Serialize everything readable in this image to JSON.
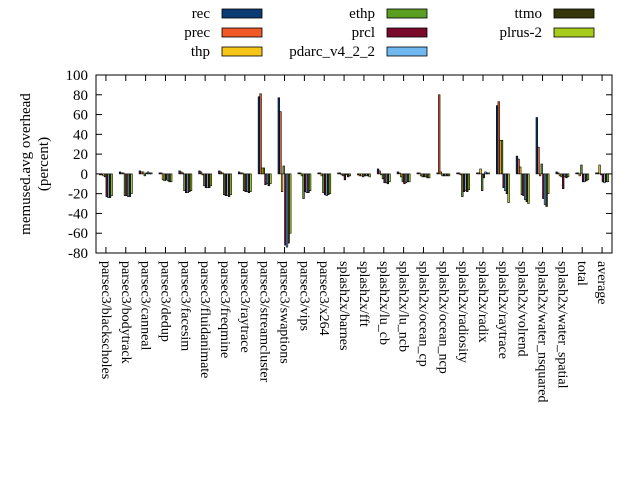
{
  "chart_data": {
    "type": "bar",
    "ylabel_line1": "memused.avg overhead",
    "ylabel_line2": "(percent)",
    "ylim": [
      -80,
      100
    ],
    "yticks": [
      -80,
      -60,
      -40,
      -20,
      0,
      20,
      40,
      60,
      80,
      100
    ],
    "grid": false,
    "legend_position": "top",
    "categories": [
      "parsec3/blackscholes",
      "parsec3/bodytrack",
      "parsec3/canneal",
      "parsec3/dedup",
      "parsec3/facesim",
      "parsec3/fluidanimate",
      "parsec3/freqmine",
      "parsec3/raytrace",
      "parsec3/streamcluster",
      "parsec3/swaptions",
      "parsec3/vips",
      "parsec3/x264",
      "splash2x/barnes",
      "splash2x/fft",
      "splash2x/lu_cb",
      "splash2x/lu_ncb",
      "splash2x/ocean_cp",
      "splash2x/ocean_ncp",
      "splash2x/radiosity",
      "splash2x/radix",
      "splash2x/raytrace",
      "splash2x/volrend",
      "splash2x/water_nsquared",
      "splash2x/water_spatial",
      "total",
      "average"
    ],
    "series": [
      {
        "name": "rec",
        "color": "#0b3b73",
        "values": [
          -1,
          2,
          3,
          1,
          3,
          3,
          3,
          2,
          78,
          77,
          1,
          1,
          1,
          -1,
          5,
          2,
          1,
          1,
          1,
          1,
          69,
          18,
          57,
          2,
          1,
          1
        ]
      },
      {
        "name": "prec",
        "color": "#f05a28",
        "values": [
          -1,
          1,
          2,
          1,
          2,
          2,
          2,
          1,
          81,
          63,
          1,
          1,
          1,
          -2,
          3,
          1,
          1,
          80,
          1,
          1,
          73,
          15,
          27,
          1,
          1,
          1
        ]
      },
      {
        "name": "thp",
        "color": "#f5c518",
        "values": [
          -2,
          1,
          2,
          -6,
          1,
          -1,
          1,
          1,
          6,
          -18,
          -2,
          -2,
          -1,
          -2,
          -1,
          -3,
          -2,
          2,
          -1,
          5,
          34,
          7,
          -2,
          -2,
          -2,
          9
        ]
      },
      {
        "name": "ethp",
        "color": "#5a9e22",
        "values": [
          -3,
          -22,
          -2,
          -7,
          -17,
          -12,
          -21,
          -17,
          6,
          8,
          -25,
          -19,
          -2,
          -3,
          -5,
          -8,
          -3,
          -2,
          -23,
          -17,
          34,
          -21,
          10,
          -3,
          9,
          -1
        ]
      },
      {
        "name": "prcl",
        "color": "#7a0a2c",
        "values": [
          -23,
          -22,
          1,
          -6,
          -19,
          -14,
          -22,
          -18,
          -11,
          -72,
          -18,
          -21,
          -6,
          -2,
          -9,
          -10,
          -3,
          -2,
          -18,
          -4,
          -14,
          -22,
          -25,
          -15,
          -8,
          -8
        ]
      },
      {
        "name": "pdarc_v4_2_2",
        "color": "#6fb8f0",
        "values": [
          -24,
          -23,
          2,
          -7,
          -19,
          -14,
          -22,
          -18,
          -10,
          -74,
          -19,
          -22,
          -1,
          -2,
          -9,
          -9,
          -3,
          -2,
          -17,
          2,
          -17,
          -26,
          -31,
          -3,
          -8,
          -9
        ]
      },
      {
        "name": "ttmo",
        "color": "#35350a",
        "values": [
          -24,
          -23,
          1,
          -8,
          -18,
          -14,
          -23,
          -19,
          -12,
          -70,
          -19,
          -21,
          -3,
          -2,
          -10,
          -8,
          -4,
          -2,
          -18,
          1,
          -20,
          -28,
          -33,
          -4,
          -7,
          -8
        ]
      },
      {
        "name": "plrus-2",
        "color": "#a8cc1c",
        "values": [
          -22,
          -20,
          1,
          -8,
          -17,
          -12,
          -21,
          -18,
          -10,
          -60,
          -17,
          -20,
          -2,
          -3,
          -8,
          -8,
          -4,
          -2,
          -16,
          1,
          -29,
          -30,
          -20,
          -3,
          -6,
          -8
        ]
      }
    ]
  }
}
